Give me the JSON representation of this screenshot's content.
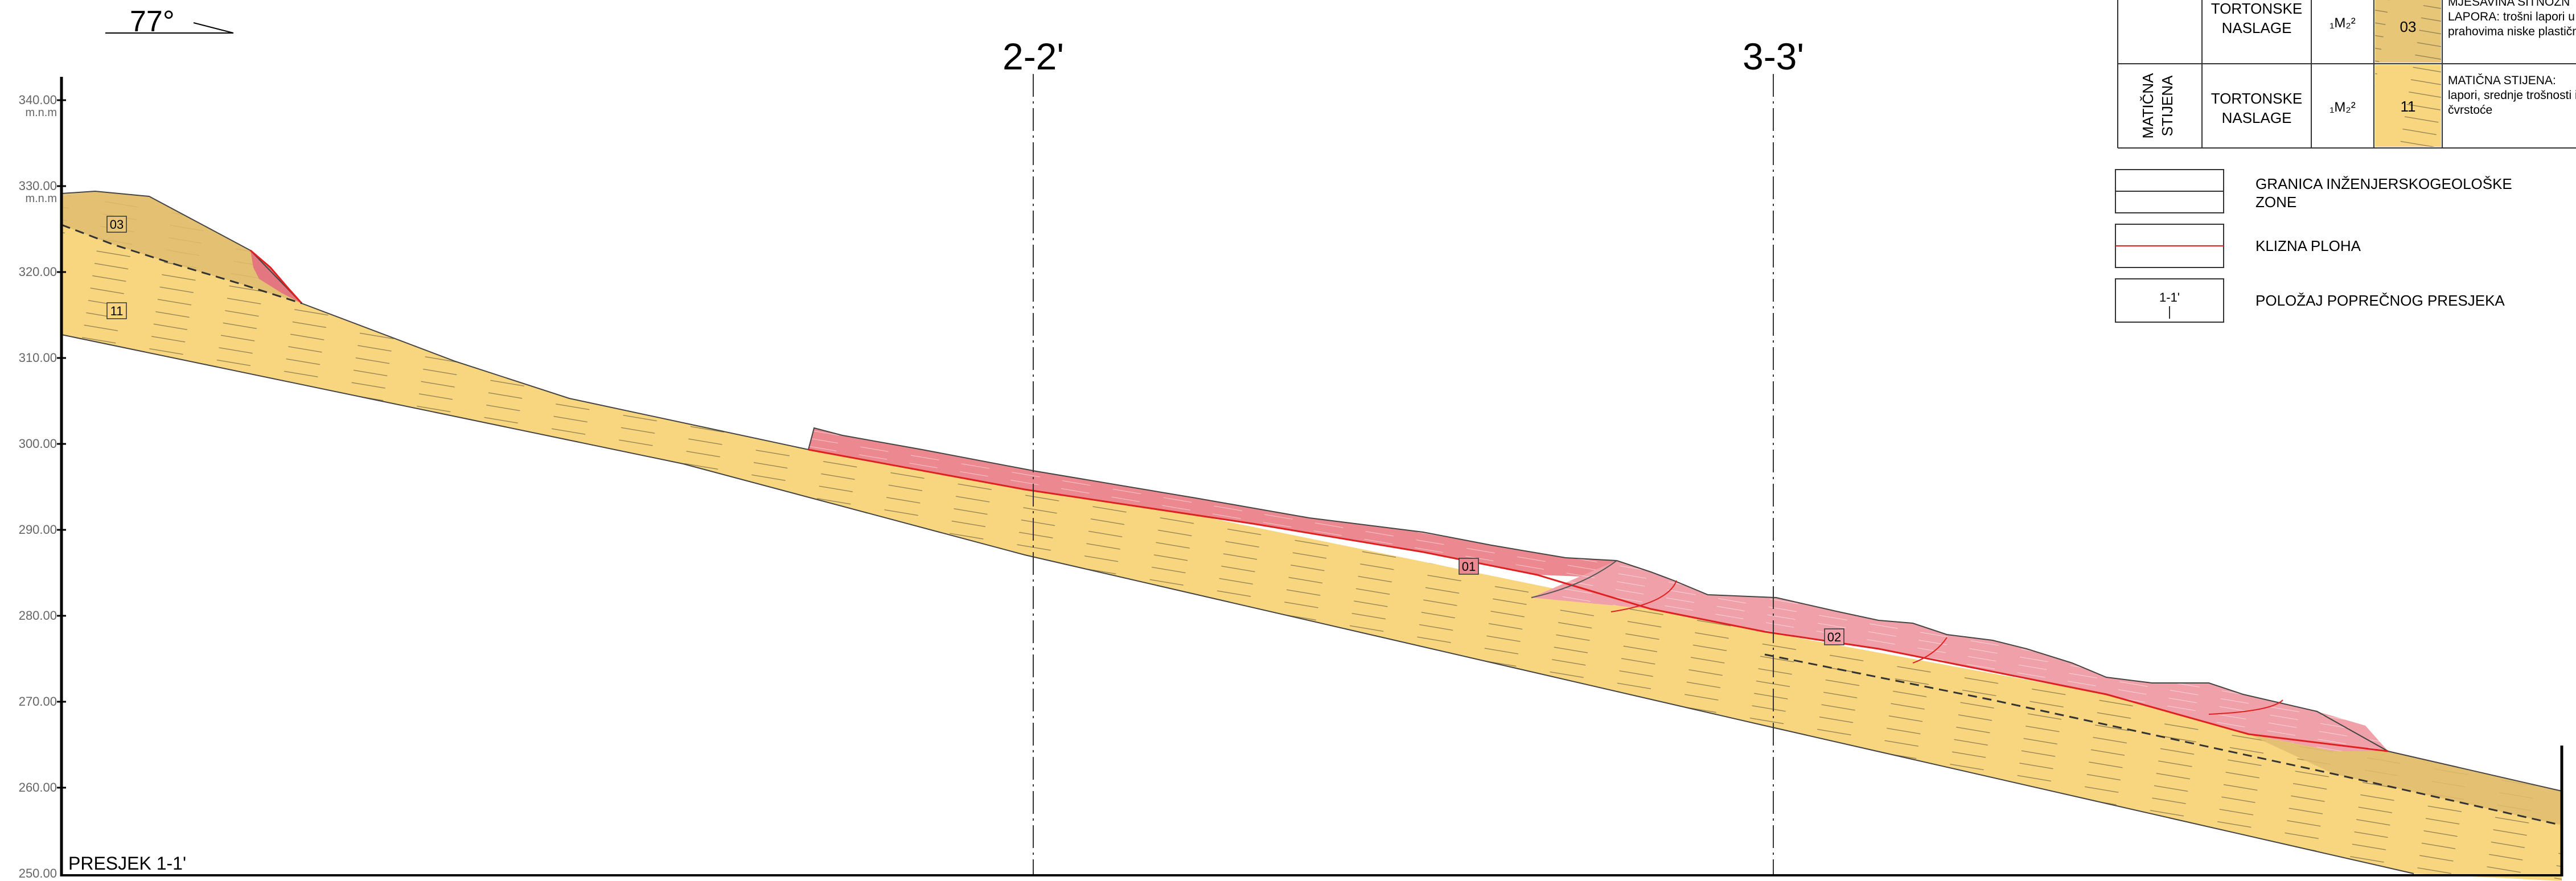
{
  "orientation": {
    "angle": "77°"
  },
  "section_title": "PRESJEK 1-1'",
  "cross_sections": [
    {
      "label": "2-2'"
    },
    {
      "label": "3-3'"
    }
  ],
  "y_axis": {
    "unit": "m.n.m",
    "ticks": [
      "340.00",
      "330.00",
      "320.00",
      "310.00",
      "300.00",
      "290.00",
      "280.00",
      "270.00",
      "260.00",
      "250.00"
    ]
  },
  "zone_labels": [
    {
      "code": "03"
    },
    {
      "code": "11"
    },
    {
      "code": "01"
    },
    {
      "code": "02"
    }
  ],
  "legend": {
    "rows": [
      {
        "group": "",
        "formation": "TORTONSKE NASLAGE",
        "symbol": "₁M₂²",
        "code": "03",
        "description_lines": [
          "MJEŠAVINA SITNOZN",
          "LAPORA:  trošni lapori u",
          "prahovima niske plastičn"
        ]
      },
      {
        "group": "MATIČNA STIJENA",
        "formation": "TORTONSKE NASLAGE",
        "symbol": "₁M₂²",
        "code": "11",
        "description_lines": [
          "MATIČNA STIJENA:",
          "lapori, srednje trošnosti i",
          "čvrstoće"
        ]
      }
    ],
    "symbols": [
      {
        "type": "zone-boundary",
        "label_lines": [
          "GRANICA INŽENJERSKOGEOLOŠKE",
          "ZONE"
        ]
      },
      {
        "type": "slip-surface",
        "label_lines": [
          "KLIZNA PLOHA"
        ]
      },
      {
        "type": "section-position",
        "sample": "1-1'",
        "label_lines": [
          "POLOŽAJ POPREČNOG PRESJEKA"
        ]
      }
    ]
  },
  "colors": {
    "bedrock": "#f8d680",
    "weathered": "#e8c678",
    "landslide": "#f0a0a8",
    "landslide_steep": "#e47680",
    "slip_line": "#e02020",
    "axis_text": "#666666"
  }
}
